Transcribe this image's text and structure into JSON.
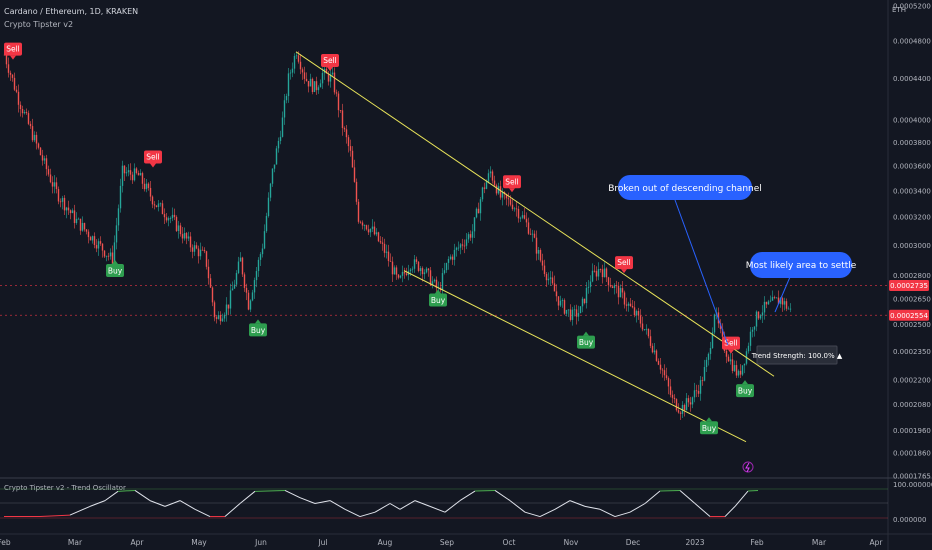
{
  "header": {
    "symbol_line": "Cardano / Ethereum, 1D, KRAKEN",
    "indicator": "Crypto Tipster v2"
  },
  "currency": "ETH",
  "price_ticks": [
    "0.0005200",
    "0.0004800",
    "0.0004400",
    "0.0004000",
    "0.0003800",
    "0.0003600",
    "0.0003400",
    "0.0003200",
    "0.0003000",
    "0.0002800",
    "0.0002650",
    "0.0002500",
    "0.0002350",
    "0.0002200",
    "0.0002080",
    "0.0001960",
    "0.0001860",
    "0.0001765"
  ],
  "price_badges": [
    {
      "label": "0.0002735",
      "value": 0.0002735,
      "color": "#f23645"
    },
    {
      "label": "0.0002554",
      "value": 0.0002554,
      "color": "#f23645"
    }
  ],
  "x_labels": [
    {
      "label": "Feb",
      "x": 4
    },
    {
      "label": "Mar",
      "x": 75
    },
    {
      "label": "Apr",
      "x": 137
    },
    {
      "label": "May",
      "x": 199
    },
    {
      "label": "Jun",
      "x": 261
    },
    {
      "label": "Jul",
      "x": 323
    },
    {
      "label": "Aug",
      "x": 385
    },
    {
      "label": "Sep",
      "x": 447
    },
    {
      "label": "Oct",
      "x": 509
    },
    {
      "label": "Nov",
      "x": 571
    },
    {
      "label": "Dec",
      "x": 633
    },
    {
      "label": "2023",
      "x": 695
    },
    {
      "label": "Feb",
      "x": 757
    },
    {
      "label": "Mar",
      "x": 819
    },
    {
      "label": "Apr",
      "x": 876
    }
  ],
  "signals": [
    {
      "type": "Sell",
      "x": 13,
      "price": 0.000464
    },
    {
      "type": "Sell",
      "x": 153,
      "price": 0.000362
    },
    {
      "type": "Sell",
      "x": 330,
      "price": 0.000452
    },
    {
      "type": "Sell",
      "x": 512,
      "price": 0.000342
    },
    {
      "type": "Sell",
      "x": 624,
      "price": 0.000284
    },
    {
      "type": "Sell",
      "x": 731,
      "price": 0.000236
    },
    {
      "type": "Buy",
      "x": 115,
      "price": 0.00029
    },
    {
      "type": "Buy",
      "x": 258,
      "price": 0.000253
    },
    {
      "type": "Buy",
      "x": 438,
      "price": 0.000271
    },
    {
      "type": "Buy",
      "x": 586,
      "price": 0.000246
    },
    {
      "type": "Buy",
      "x": 709,
      "price": 0.000202
    },
    {
      "type": "Buy",
      "x": 745,
      "price": 0.00022
    }
  ],
  "callouts": {
    "breakout": "Broken out of descending channel",
    "settle": "Most likely area to settle",
    "trend_strength": "Trend Strength: 100.0% ▲"
  },
  "oscillator": {
    "title": "Crypto Tipster v2 - Trend Oscillator",
    "top_label": "100.000000",
    "bottom_label": "0.000000"
  },
  "chart_data": {
    "type": "candlestick",
    "title": "Cardano / Ethereum, 1D, KRAKEN",
    "x_range": [
      "2022-01-25",
      "2023-04-01"
    ],
    "ylim": [
      0.0001765,
      0.00052
    ],
    "scale": "log",
    "close_path": [
      [
        4,
        0.000465
      ],
      [
        18,
        0.00042
      ],
      [
        35,
        0.00038
      ],
      [
        55,
        0.00034
      ],
      [
        75,
        0.000318
      ],
      [
        95,
        0.000303
      ],
      [
        112,
        0.00029
      ],
      [
        122,
        0.000355
      ],
      [
        138,
        0.000352
      ],
      [
        155,
        0.00033
      ],
      [
        172,
        0.000318
      ],
      [
        190,
        0.0003
      ],
      [
        205,
        0.000292
      ],
      [
        215,
        0.000252
      ],
      [
        228,
        0.000262
      ],
      [
        240,
        0.00029
      ],
      [
        248,
        0.000262
      ],
      [
        262,
        0.0003
      ],
      [
        272,
        0.000355
      ],
      [
        282,
        0.0004
      ],
      [
        288,
        0.00044
      ],
      [
        296,
        0.00047
      ],
      [
        305,
        0.00044
      ],
      [
        315,
        0.00043
      ],
      [
        322,
        0.000445
      ],
      [
        332,
        0.00044
      ],
      [
        342,
        0.000395
      ],
      [
        350,
        0.00037
      ],
      [
        358,
        0.00032
      ],
      [
        372,
        0.00031
      ],
      [
        385,
        0.000295
      ],
      [
        398,
        0.000275
      ],
      [
        410,
        0.000288
      ],
      [
        422,
        0.000285
      ],
      [
        438,
        0.00027
      ],
      [
        448,
        0.00029
      ],
      [
        460,
        0.0003
      ],
      [
        472,
        0.00031
      ],
      [
        482,
        0.00034
      ],
      [
        490,
        0.000355
      ],
      [
        500,
        0.000335
      ],
      [
        512,
        0.00033
      ],
      [
        522,
        0.00032
      ],
      [
        530,
        0.00031
      ],
      [
        540,
        0.00029
      ],
      [
        550,
        0.000275
      ],
      [
        560,
        0.000262
      ],
      [
        572,
        0.000255
      ],
      [
        580,
        0.000258
      ],
      [
        590,
        0.000278
      ],
      [
        600,
        0.000285
      ],
      [
        610,
        0.000275
      ],
      [
        620,
        0.000268
      ],
      [
        632,
        0.000258
      ],
      [
        642,
        0.00025
      ],
      [
        652,
        0.000238
      ],
      [
        662,
        0.000225
      ],
      [
        672,
        0.00021
      ],
      [
        680,
        0.000206
      ],
      [
        690,
        0.00021
      ],
      [
        700,
        0.000218
      ],
      [
        708,
        0.000232
      ],
      [
        714,
        0.000258
      ],
      [
        722,
        0.00024
      ],
      [
        730,
        0.00023
      ],
      [
        738,
        0.000222
      ],
      [
        746,
        0.000235
      ],
      [
        752,
        0.00025
      ],
      [
        760,
        0.000258
      ],
      [
        770,
        0.000262
      ],
      [
        780,
        0.000265
      ],
      [
        790,
        0.000258
      ]
    ],
    "trendlines": [
      {
        "from": [
          296,
          0.000468
        ],
        "to": [
          774,
          0.000222
        ]
      },
      {
        "from": [
          404,
          0.000283
        ],
        "to": [
          746,
          0.000191
        ]
      }
    ],
    "oscillator_path": [
      [
        4,
        0.05
      ],
      [
        40,
        0.05
      ],
      [
        70,
        0.1
      ],
      [
        90,
        0.4
      ],
      [
        105,
        0.6
      ],
      [
        118,
        0.92
      ],
      [
        135,
        0.95
      ],
      [
        150,
        0.6
      ],
      [
        165,
        0.4
      ],
      [
        180,
        0.6
      ],
      [
        195,
        0.3
      ],
      [
        210,
        0.05
      ],
      [
        225,
        0.05
      ],
      [
        240,
        0.5
      ],
      [
        255,
        0.92
      ],
      [
        285,
        0.95
      ],
      [
        300,
        0.7
      ],
      [
        315,
        0.5
      ],
      [
        330,
        0.6
      ],
      [
        345,
        0.3
      ],
      [
        360,
        0.05
      ],
      [
        375,
        0.2
      ],
      [
        390,
        0.5
      ],
      [
        400,
        0.3
      ],
      [
        415,
        0.6
      ],
      [
        430,
        0.4
      ],
      [
        445,
        0.2
      ],
      [
        460,
        0.6
      ],
      [
        475,
        0.93
      ],
      [
        495,
        0.95
      ],
      [
        510,
        0.6
      ],
      [
        525,
        0.2
      ],
      [
        540,
        0.05
      ],
      [
        555,
        0.3
      ],
      [
        570,
        0.6
      ],
      [
        585,
        0.4
      ],
      [
        600,
        0.3
      ],
      [
        615,
        0.05
      ],
      [
        630,
        0.2
      ],
      [
        645,
        0.5
      ],
      [
        660,
        0.93
      ],
      [
        680,
        0.95
      ],
      [
        695,
        0.5
      ],
      [
        710,
        0.05
      ],
      [
        725,
        0.05
      ],
      [
        735,
        0.4
      ],
      [
        748,
        0.93
      ],
      [
        758,
        0.95
      ]
    ]
  }
}
